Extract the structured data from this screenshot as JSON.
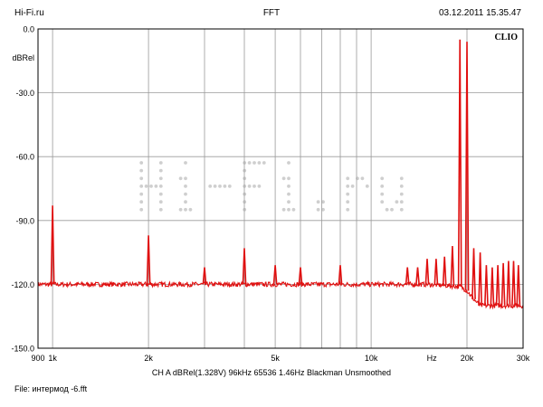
{
  "header": {
    "left": "Hi-Fi.ru",
    "center": "FFT",
    "right": "03.12.2011 15.35.47"
  },
  "brand_mark": "CLIO",
  "watermark": "Hi-Fi.ru",
  "settings_line": "CH A   dBRel(1.328V)   96kHz   65536   1.46Hz   Blackman   Unsmoothed",
  "file": {
    "label": "File:",
    "name": "интермод -6.fft"
  },
  "colors": {
    "trace": "#e01010",
    "grid": "#9a9a9a",
    "background": "#ffffff",
    "watermark": "#cfcfcf"
  },
  "chart_data": {
    "type": "line",
    "title": "FFT",
    "xlabel": "Hz",
    "ylabel": "dBRel",
    "x_scale": "log",
    "xlim": [
      900,
      30000
    ],
    "ylim": [
      -150,
      0
    ],
    "grid": true,
    "x_ticks": [
      {
        "value": 900,
        "label": "900"
      },
      {
        "value": 1000,
        "label": "1k"
      },
      {
        "value": 2000,
        "label": "2k"
      },
      {
        "value": 5000,
        "label": "5k"
      },
      {
        "value": 10000,
        "label": "10k"
      },
      {
        "value": 20000,
        "label": "20k"
      },
      {
        "value": 30000,
        "label": "30k"
      }
    ],
    "y_ticks": [
      {
        "value": 0,
        "label": "0.0"
      },
      {
        "value": -30,
        "label": "-30.0"
      },
      {
        "value": -60,
        "label": "-60.0"
      },
      {
        "value": -90,
        "label": "-90.0"
      },
      {
        "value": -120,
        "label": "-120.0"
      },
      {
        "value": -150,
        "label": "-150.0"
      }
    ],
    "noise_floor": [
      [
        900,
        -120
      ],
      [
        1000,
        -120
      ],
      [
        2000,
        -120
      ],
      [
        5000,
        -120
      ],
      [
        10000,
        -120
      ],
      [
        15000,
        -120
      ],
      [
        19000,
        -121
      ],
      [
        20000,
        -123
      ],
      [
        21000,
        -127
      ],
      [
        22000,
        -130
      ],
      [
        30000,
        -130
      ]
    ],
    "series": [
      {
        "peaks": [
          [
            1000,
            -83
          ],
          [
            2000,
            -97
          ],
          [
            3000,
            -112
          ],
          [
            4000,
            -103
          ],
          [
            5000,
            -111
          ],
          [
            6000,
            -112
          ],
          [
            8000,
            -111
          ],
          [
            13000,
            -112
          ],
          [
            14000,
            -112
          ],
          [
            15000,
            -108
          ],
          [
            16000,
            -108
          ],
          [
            17000,
            -107
          ],
          [
            18000,
            -102
          ],
          [
            19000,
            -5
          ],
          [
            20000,
            -6
          ],
          [
            21000,
            -103
          ],
          [
            22000,
            -105
          ],
          [
            23000,
            -111
          ],
          [
            24000,
            -112
          ],
          [
            25000,
            -111
          ],
          [
            26000,
            -110
          ],
          [
            27000,
            -109
          ],
          [
            28000,
            -109
          ],
          [
            29000,
            -111
          ]
        ]
      }
    ]
  }
}
